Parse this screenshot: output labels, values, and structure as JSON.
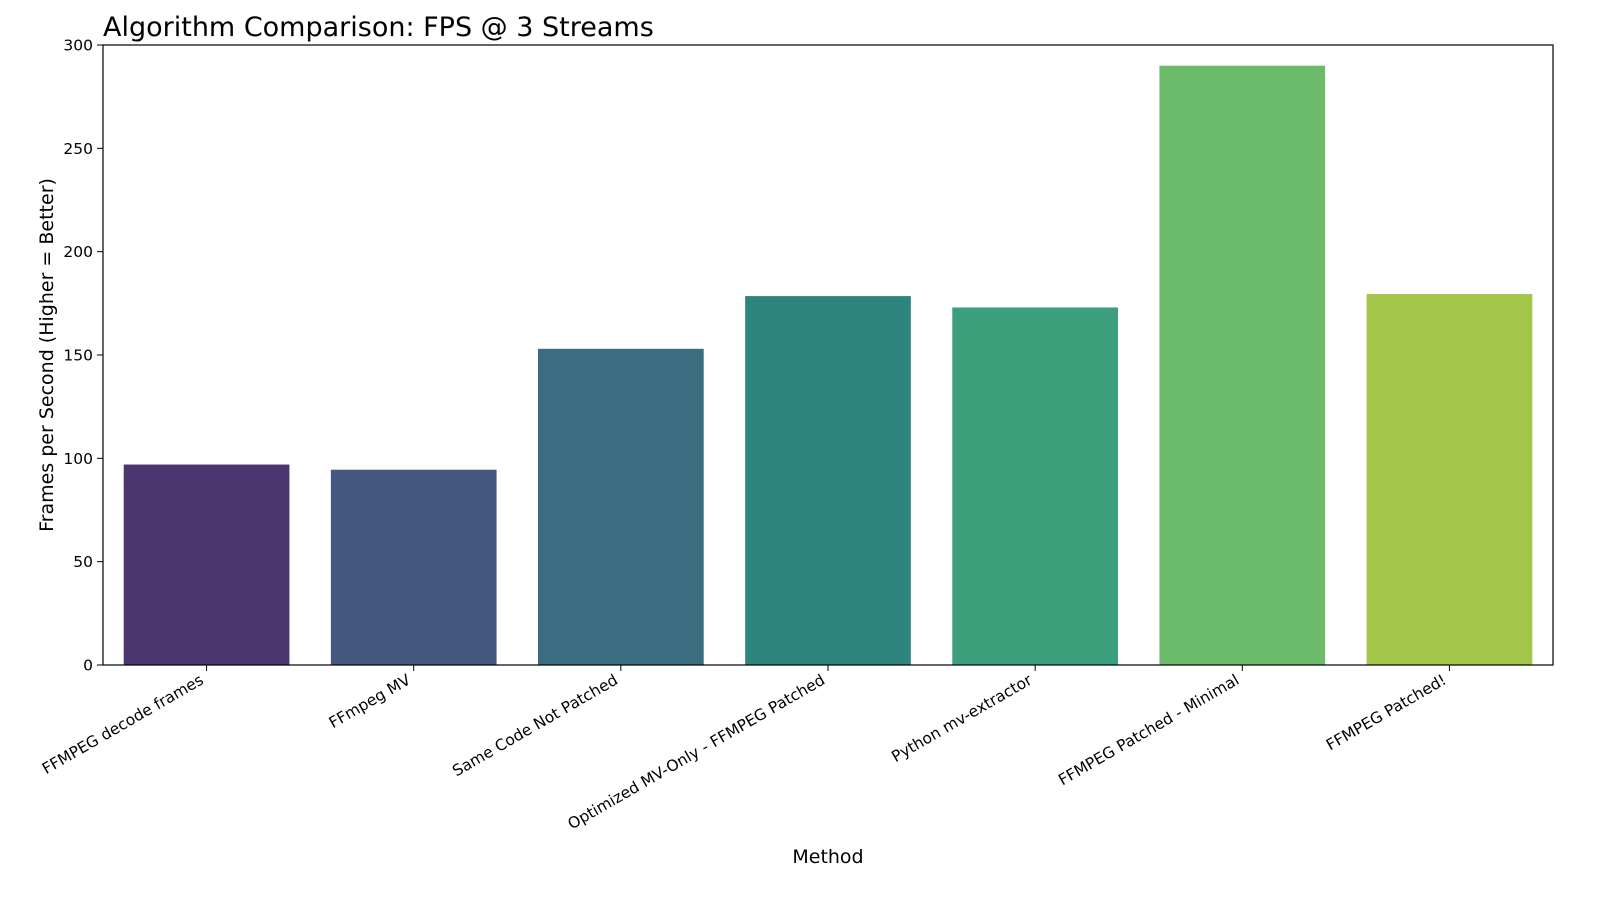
{
  "chart_data": {
    "type": "bar",
    "title": "Algorithm Comparison: FPS @ 3 Streams",
    "xlabel": "Method",
    "ylabel": "Frames per Second (Higher = Better)",
    "categories": [
      "FFMPEG decode frames",
      "FFmpeg MV",
      "Same Code Not Patched",
      "Optimized MV-Only - FFMPEG Patched",
      "Python mv-extractor",
      "FFMPEG Patched - Minimal",
      "FFMPEG Patched!"
    ],
    "values": [
      97,
      94.5,
      153,
      178.5,
      173,
      290,
      179.5
    ],
    "colors": [
      "#4a356e",
      "#44587f",
      "#3a6d80",
      "#2e847e",
      "#3b9f7c",
      "#6bbb6b",
      "#a3c64a"
    ],
    "ylim": [
      0,
      300
    ],
    "yticks": [
      0,
      50,
      100,
      150,
      200,
      250,
      300
    ],
    "grid": false,
    "legend": "none"
  }
}
